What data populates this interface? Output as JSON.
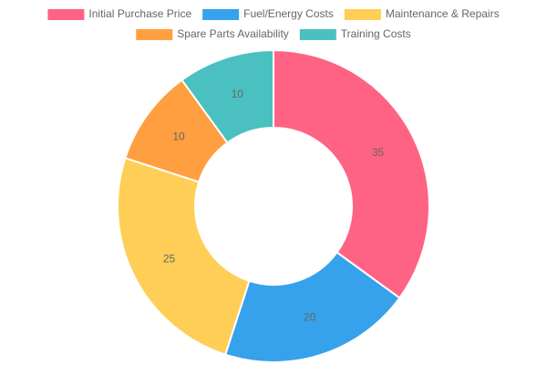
{
  "chart_data": {
    "type": "doughnut",
    "categories": [
      "Initial Purchase Price",
      "Fuel/Energy Costs",
      "Maintenance & Repairs",
      "Spare Parts Availability",
      "Training Costs"
    ],
    "values": [
      35,
      20,
      25,
      10,
      10
    ],
    "colors": [
      "#ff6384",
      "#36a2eb",
      "#ffce56",
      "#ff9f40",
      "#4bc0c0"
    ],
    "legend": "top"
  }
}
